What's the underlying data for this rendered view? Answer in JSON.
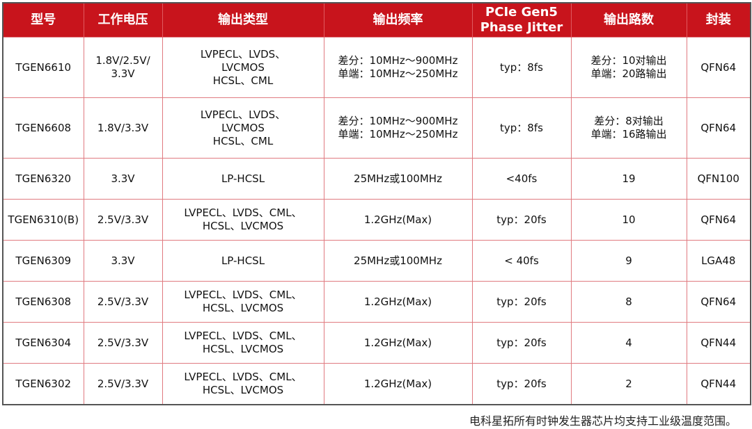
{
  "headers": [
    "型号",
    "工作电压",
    "输出类型",
    "输出频率",
    "PCIe Gen5 Phase Jitter",
    "输出路数",
    "封装"
  ],
  "header_jitter_lines": [
    "PCIe Gen5",
    "Phase Jitter"
  ],
  "rows": [
    {
      "model": "TGEN6610",
      "voltage": [
        "1.8V/2.5V/",
        "3.3V"
      ],
      "output_type": [
        "LVPECL、LVDS、",
        "LVCMOS",
        "HCSL、CML"
      ],
      "frequency": [
        "差分：10MHz～900MHz",
        "单端：10MHz～250MHz"
      ],
      "jitter": "typ：8fs",
      "outputs": [
        "差分：10对输出",
        "单端：20路输出"
      ],
      "package": "QFN64"
    },
    {
      "model": "TGEN6608",
      "voltage": [
        "1.8V/3.3V"
      ],
      "output_type": [
        "LVPECL、LVDS、",
        "LVCMOS",
        "HCSL、CML"
      ],
      "frequency": [
        "差分：10MHz～900MHz",
        "单端：10MHz～250MHz"
      ],
      "jitter": "typ：8fs",
      "outputs": [
        "差分：8对输出",
        "单端：16路输出"
      ],
      "package": "QFN64"
    },
    {
      "model": "TGEN6320",
      "voltage": [
        "3.3V"
      ],
      "output_type": [
        "LP-HCSL"
      ],
      "frequency": [
        "25MHz或100MHz"
      ],
      "jitter": "<40fs",
      "outputs": [
        "19"
      ],
      "package": "QFN100"
    },
    {
      "model": "TGEN6310(B)",
      "voltage": [
        "2.5V/3.3V"
      ],
      "output_type": [
        "LVPECL、LVDS、CML、",
        "HCSL、LVCMOS"
      ],
      "frequency": [
        "1.2GHz(Max)"
      ],
      "jitter": "typ：20fs",
      "outputs": [
        "10"
      ],
      "package": "QFN64"
    },
    {
      "model": "TGEN6309",
      "voltage": [
        "3.3V"
      ],
      "output_type": [
        "LP-HCSL"
      ],
      "frequency": [
        "25MHz或100MHz"
      ],
      "jitter": "< 40fs",
      "outputs": [
        "9"
      ],
      "package": "LGA48"
    },
    {
      "model": "TGEN6308",
      "voltage": [
        "2.5V/3.3V"
      ],
      "output_type": [
        "LVPECL、LVDS、CML、",
        "HCSL、LVCMOS"
      ],
      "frequency": [
        "1.2GHz(Max)"
      ],
      "jitter": "typ：20fs",
      "outputs": [
        "8"
      ],
      "package": "QFN64"
    },
    {
      "model": "TGEN6304",
      "voltage": [
        "2.5V/3.3V"
      ],
      "output_type": [
        "LVPECL、LVDS、CML、",
        "HCSL、LVCMOS"
      ],
      "frequency": [
        "1.2GHz(Max)"
      ],
      "jitter": "typ：20fs",
      "outputs": [
        "4"
      ],
      "package": "QFN44"
    },
    {
      "model": "TGEN6302",
      "voltage": [
        "2.5V/3.3V"
      ],
      "output_type": [
        "LVPECL、LVDS、CML、",
        "HCSL、LVCMOS"
      ],
      "frequency": [
        "1.2GHz(Max)"
      ],
      "jitter": "typ：20fs",
      "outputs": [
        "2"
      ],
      "package": "QFN44"
    }
  ],
  "footnote": "电科星拓所有时钟发生器芯片均支持工业级温度范围。",
  "colors": {
    "header_bg": "#c8141c",
    "header_text": "#ffffff",
    "grid_line": "#e07a80",
    "outer_border": "#555555"
  }
}
